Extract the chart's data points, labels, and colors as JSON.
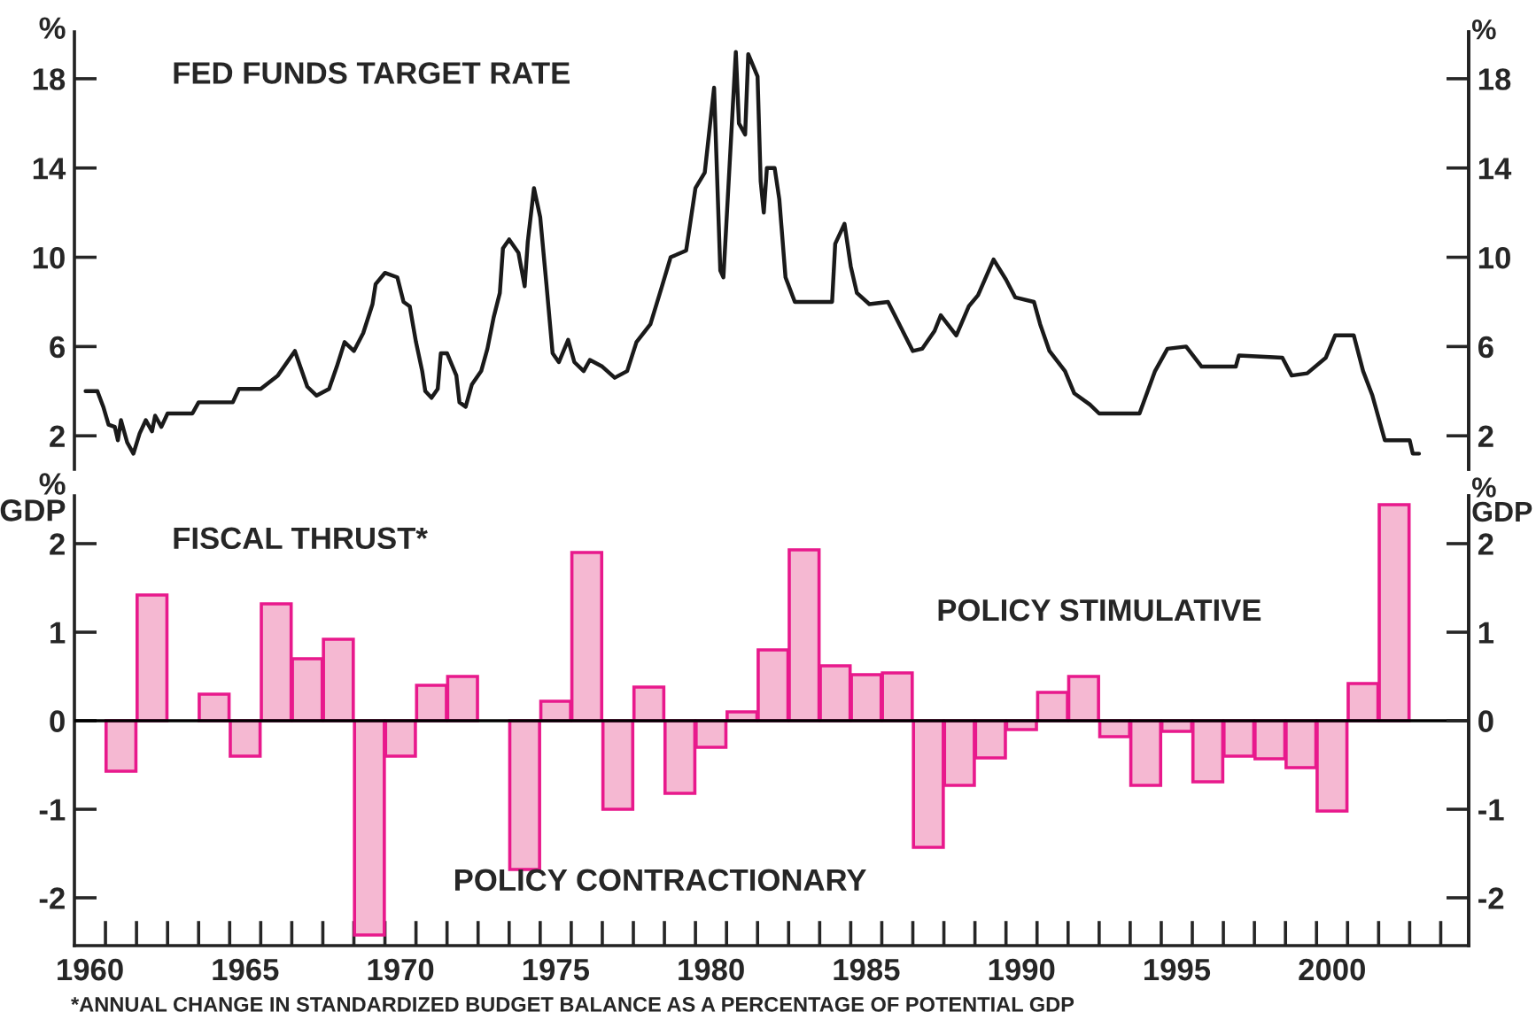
{
  "chart_data": [
    {
      "type": "line",
      "title": "FED FUNDS TARGET RATE",
      "ylabel": "%",
      "y2label": "%",
      "x": [
        1959.86,
        1960.24,
        1960.43,
        1960.6,
        1960.8,
        1960.9,
        1961.0,
        1961.2,
        1961.4,
        1961.6,
        1961.8,
        1962.0,
        1962.1,
        1962.3,
        1962.5,
        1963.3,
        1963.5,
        1964.6,
        1964.8,
        1965.5,
        1966.05,
        1966.6,
        1967.0,
        1967.3,
        1967.7,
        1967.95,
        1968.2,
        1968.5,
        1968.8,
        1969.1,
        1969.2,
        1969.5,
        1969.9,
        1970.1,
        1970.3,
        1970.5,
        1970.7,
        1970.8,
        1971.0,
        1971.2,
        1971.3,
        1971.5,
        1971.8,
        1971.9,
        1972.1,
        1972.3,
        1972.6,
        1972.8,
        1973.0,
        1973.2,
        1973.3,
        1973.5,
        1973.8,
        1974.0,
        1974.1,
        1974.3,
        1974.5,
        1974.7,
        1974.9,
        1975.1,
        1975.4,
        1975.6,
        1975.9,
        1976.1,
        1976.5,
        1976.9,
        1977.3,
        1977.6,
        1978.05,
        1978.4,
        1978.7,
        1979.2,
        1979.5,
        1979.8,
        1980.1,
        1980.3,
        1980.4,
        1980.8,
        1980.9,
        1981.1,
        1981.2,
        1981.5,
        1981.6,
        1981.7,
        1981.8,
        1982.05,
        1982.2,
        1982.4,
        1982.7,
        1983.9,
        1984.0,
        1984.3,
        1984.5,
        1984.7,
        1985.1,
        1985.7,
        1986.1,
        1986.5,
        1986.8,
        1987.2,
        1987.4,
        1987.9,
        1988.3,
        1988.6,
        1989.1,
        1989.5,
        1989.8,
        1990.4,
        1990.6,
        1990.9,
        1991.4,
        1991.7,
        1992.2,
        1992.5,
        1993.8,
        1994.3,
        1994.7,
        1995.3,
        1995.8,
        1996.9,
        1997.0,
        1998.4,
        1998.7,
        1999.2,
        1999.8,
        2000.1,
        2000.7,
        2001.0,
        2001.3,
        2001.7,
        2002.5,
        2002.6,
        2002.8
      ],
      "series": [
        {
          "color": "#1a1a1a",
          "values": [
            4.0,
            4.0,
            3.3,
            2.5,
            2.4,
            1.8,
            2.7,
            1.7,
            1.2,
            2.1,
            2.7,
            2.2,
            2.9,
            2.4,
            3.0,
            3.0,
            3.5,
            3.5,
            4.1,
            4.1,
            4.7,
            5.8,
            4.2,
            3.8,
            4.1,
            5.1,
            6.2,
            5.8,
            6.6,
            7.9,
            8.8,
            9.3,
            9.1,
            8.0,
            7.8,
            6.2,
            4.9,
            4.0,
            3.7,
            4.1,
            5.7,
            5.7,
            4.7,
            3.5,
            3.3,
            4.3,
            4.9,
            5.9,
            7.3,
            8.4,
            10.4,
            10.8,
            10.2,
            8.7,
            10.7,
            13.1,
            11.8,
            8.8,
            5.7,
            5.3,
            6.3,
            5.3,
            4.9,
            5.4,
            5.1,
            4.6,
            4.9,
            6.2,
            7.0,
            8.6,
            10.0,
            10.3,
            13.1,
            13.8,
            17.6,
            9.4,
            9.1,
            19.2,
            16.0,
            15.5,
            19.1,
            18.1,
            13.4,
            12.0,
            14.0,
            14.0,
            12.6,
            9.1,
            8.0,
            8.0,
            10.6,
            11.5,
            9.6,
            8.4,
            7.9,
            8.0,
            6.9,
            5.8,
            5.9,
            6.7,
            7.4,
            6.5,
            7.8,
            8.3,
            9.9,
            9.0,
            8.2,
            8.0,
            7.0,
            5.8,
            4.9,
            3.9,
            3.4,
            3.0,
            3.0,
            4.9,
            5.9,
            6.0,
            5.1,
            5.1,
            5.6,
            5.5,
            4.7,
            4.8,
            5.5,
            6.5,
            6.5,
            4.9,
            3.8,
            1.8,
            1.8,
            1.2,
            1.2
          ]
        }
      ],
      "xlim": [
        1959.5,
        2004.4
      ],
      "ylim": [
        0.5,
        20.1
      ],
      "yticks": [
        2,
        6,
        10,
        14,
        18
      ],
      "y2lim": [
        0.5,
        20.1
      ],
      "y2ticks": [
        2,
        6,
        10,
        14,
        18
      ],
      "tick_labels": "y"
    },
    {
      "type": "bar",
      "title": "FISCAL THRUST*",
      "ylabel": "%\nGDP",
      "y2label": "%\nGDP",
      "x": [
        1961,
        1962,
        1964,
        1965,
        1966,
        1967,
        1968,
        1969,
        1970,
        1971,
        1972,
        1974,
        1975,
        1976,
        1977,
        1978,
        1979,
        1980,
        1981,
        1982,
        1983,
        1984,
        1985,
        1986,
        1987,
        1988,
        1989,
        1990,
        1991,
        1992,
        1993,
        1994,
        1995,
        1996,
        1997,
        1998,
        1999,
        2000,
        2001,
        2002
      ],
      "series": [
        {
          "color": "#f5b8d2",
          "values": [
            -0.57,
            1.42,
            0.3,
            -0.4,
            1.32,
            0.7,
            0.92,
            -2.42,
            -0.4,
            0.4,
            0.5,
            -1.68,
            0.22,
            1.9,
            -1.0,
            0.38,
            -0.82,
            -0.3,
            0.1,
            0.8,
            1.93,
            0.62,
            0.52,
            0.54,
            -1.43,
            -0.73,
            -0.42,
            -0.1,
            0.32,
            0.5,
            -0.18,
            -0.73,
            -0.12,
            -0.69,
            -0.4,
            -0.43,
            -0.53,
            -1.02,
            0.42,
            2.44
          ]
        }
      ],
      "xlim": [
        1959.5,
        2004.4
      ],
      "xticks": [
        1960,
        1965,
        1970,
        1975,
        1980,
        1985,
        1990,
        1995,
        2000,
        {
          "value": 1960.5,
          "label": null
        },
        {
          "value": 1961.5,
          "label": null
        },
        {
          "value": 1962.5,
          "label": null
        },
        {
          "value": 1963.5,
          "label": null
        },
        {
          "value": 1964.5,
          "label": null
        },
        {
          "value": 1965.5,
          "label": null
        },
        {
          "value": 1966.5,
          "label": null
        },
        {
          "value": 1967.5,
          "label": null
        },
        {
          "value": 1968.5,
          "label": null
        },
        {
          "value": 1969.5,
          "label": null
        },
        {
          "value": 1970.5,
          "label": null
        },
        {
          "value": 1971.5,
          "label": null
        },
        {
          "value": 1972.5,
          "label": null
        },
        {
          "value": 1973.5,
          "label": null
        },
        {
          "value": 1974.5,
          "label": null
        },
        {
          "value": 1975.5,
          "label": null
        },
        {
          "value": 1976.5,
          "label": null
        },
        {
          "value": 1977.5,
          "label": null
        },
        {
          "value": 1978.5,
          "label": null
        },
        {
          "value": 1979.5,
          "label": null
        },
        {
          "value": 1980.5,
          "label": null
        },
        {
          "value": 1981.5,
          "label": null
        },
        {
          "value": 1982.5,
          "label": null
        },
        {
          "value": 1983.5,
          "label": null
        },
        {
          "value": 1984.5,
          "label": null
        },
        {
          "value": 1985.5,
          "label": null
        },
        {
          "value": 1986.5,
          "label": null
        },
        {
          "value": 1987.5,
          "label": null
        },
        {
          "value": 1988.5,
          "label": null
        },
        {
          "value": 1989.5,
          "label": null
        },
        {
          "value": 1990.5,
          "label": null
        },
        {
          "value": 1991.5,
          "label": null
        },
        {
          "value": 1992.5,
          "label": null
        },
        {
          "value": 1993.5,
          "label": null
        },
        {
          "value": 1994.5,
          "label": null
        },
        {
          "value": 1995.5,
          "label": null
        },
        {
          "value": 1996.5,
          "label": null
        },
        {
          "value": 1997.5,
          "label": null
        },
        {
          "value": 1998.5,
          "label": null
        },
        {
          "value": 1999.5,
          "label": null
        },
        {
          "value": 2000.5,
          "label": null
        },
        {
          "value": 2001.5,
          "label": null
        },
        {
          "value": 2002.5,
          "label": null
        },
        {
          "value": 2003.5,
          "label": null
        }
      ],
      "ylim": [
        -2.54,
        2.54
      ],
      "yticks": [
        -2,
        -1,
        0,
        1,
        2
      ],
      "y2lim": [
        -2.54,
        2.54
      ],
      "y2ticks": [
        -2,
        -1,
        0,
        1,
        2
      ],
      "ref_lines": [
        {
          "axis": "y",
          "value": 0,
          "color": "#000000"
        }
      ],
      "annotations": [
        "POLICY STIMULATIVE",
        "POLICY CONTRACTIONARY",
        "*ANNUAL CHANGE IN STANDARDIZED BUDGET BALANCE AS A PERCENTAGE OF POTENTIAL GDP"
      ]
    }
  ]
}
